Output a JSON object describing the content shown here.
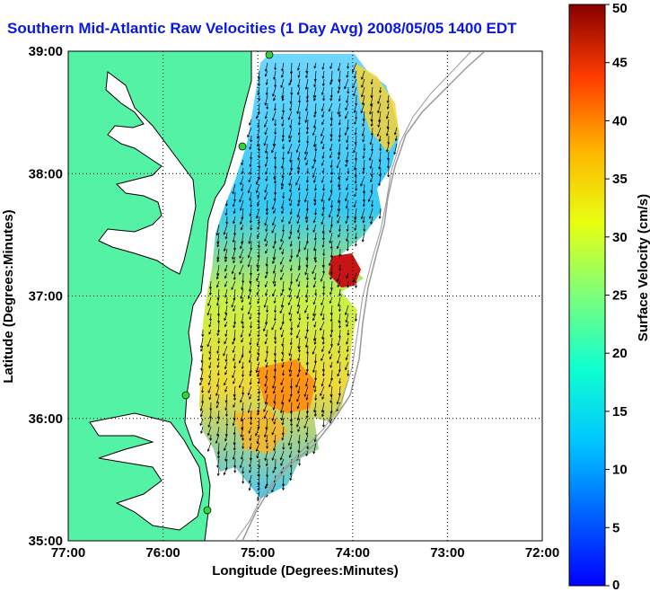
{
  "title": "Southern Mid-Atlantic Raw Velocities (1 Day Avg) 2008/05/05 1400 EDT",
  "map": {
    "xlabel": "Longitude (Degrees:Minutes)",
    "ylabel": "Latitude (Degrees:Minutes)",
    "xticks": [
      "77:00",
      "76:00",
      "75:00",
      "74:00",
      "73:00",
      "72:00"
    ],
    "yticks": [
      "35:00",
      "36:00",
      "37:00",
      "38:00",
      "39:00"
    ],
    "xlim_deg_west": [
      77,
      72
    ],
    "ylim_deg_north": [
      35,
      39
    ],
    "grid": "dotted",
    "land_color": "#54f2a5",
    "coast_color": "#000000",
    "bathymetry_color": "#9a9a9a",
    "station_color": "#2ed63a",
    "vector_color": "#000000"
  },
  "colorbar": {
    "label": "Surface Velocity (cm/s)",
    "ticks": [
      "0",
      "5",
      "10",
      "15",
      "20",
      "25",
      "30",
      "35",
      "40",
      "45",
      "50"
    ],
    "range": [
      0,
      50
    ],
    "colormap": "jet"
  }
}
